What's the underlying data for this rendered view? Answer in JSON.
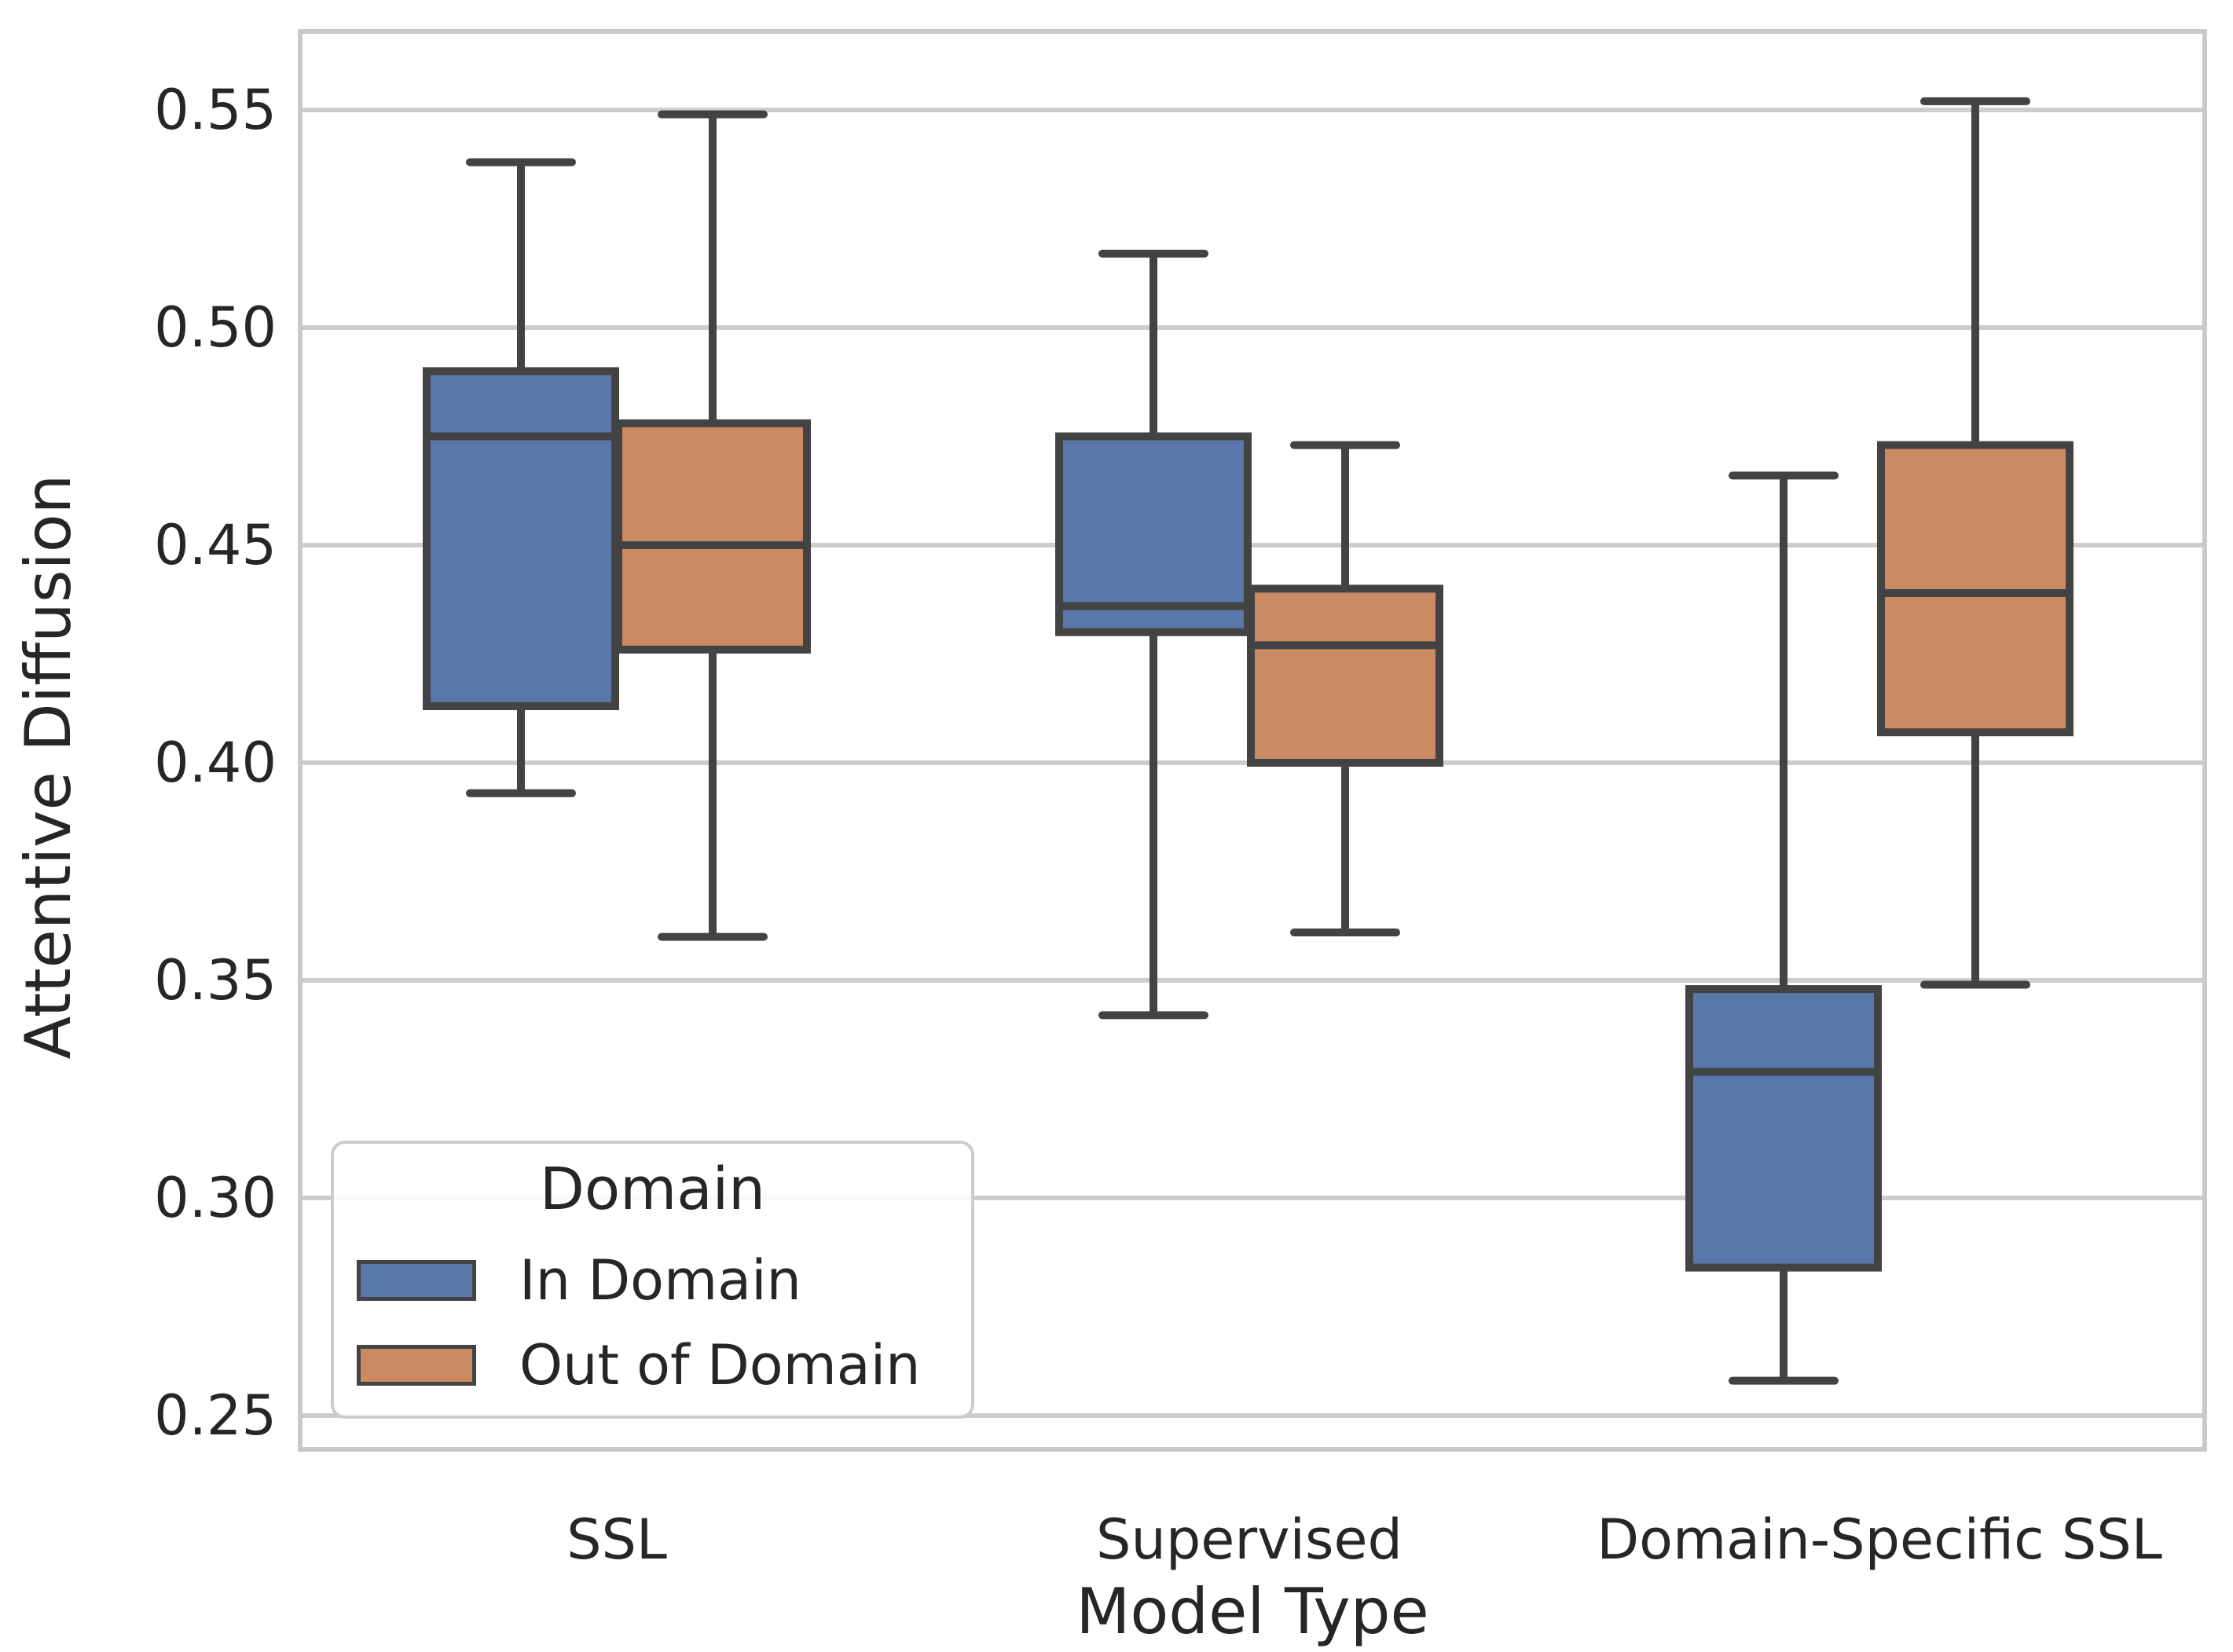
{
  "axes": {
    "xlabel": "Model Type",
    "ylabel": "Attentive Diffusion"
  },
  "legend": {
    "title": "Domain",
    "items": [
      {
        "label": "In Domain",
        "color": "#5977a9"
      },
      {
        "label": "Out of Domain",
        "color": "#cc8a64"
      }
    ]
  },
  "colors": {
    "in_domain_fill": "#5977a9",
    "out_domain_fill": "#cc8a64",
    "box_edge": "#434343",
    "gridline": "#cdcdcd",
    "spine": "#c9c9c9",
    "text": "#262626",
    "background": "#ffffff"
  },
  "chart_data": {
    "type": "boxplot-grouped",
    "title": "",
    "xlabel": "Model Type",
    "ylabel": "Attentive Diffusion",
    "categories": [
      "SSL",
      "Supervised",
      "Domain-Specific SSL"
    ],
    "ylim": [
      0.242,
      0.568
    ],
    "yticks": [
      0.25,
      0.3,
      0.35,
      0.4,
      0.45,
      0.5,
      0.55
    ],
    "grid": true,
    "legend_position": "lower left",
    "series": [
      {
        "name": "In Domain",
        "color": "#5977a9",
        "boxes": [
          {
            "category": "SSL",
            "whisker_low": 0.393,
            "q1": 0.413,
            "median": 0.475,
            "q3": 0.49,
            "whisker_high": 0.538
          },
          {
            "category": "Supervised",
            "whisker_low": 0.342,
            "q1": 0.43,
            "median": 0.436,
            "q3": 0.475,
            "whisker_high": 0.517
          },
          {
            "category": "Domain-Specific SSL",
            "whisker_low": 0.258,
            "q1": 0.284,
            "median": 0.329,
            "q3": 0.348,
            "whisker_high": 0.466
          }
        ]
      },
      {
        "name": "Out of Domain",
        "color": "#cc8a64",
        "boxes": [
          {
            "category": "SSL",
            "whisker_low": 0.36,
            "q1": 0.426,
            "median": 0.45,
            "q3": 0.478,
            "whisker_high": 0.549
          },
          {
            "category": "Supervised",
            "whisker_low": 0.361,
            "q1": 0.4,
            "median": 0.427,
            "q3": 0.44,
            "whisker_high": 0.473
          },
          {
            "category": "Domain-Specific SSL",
            "whisker_low": 0.349,
            "q1": 0.407,
            "median": 0.439,
            "q3": 0.473,
            "whisker_high": 0.552
          }
        ]
      }
    ]
  }
}
